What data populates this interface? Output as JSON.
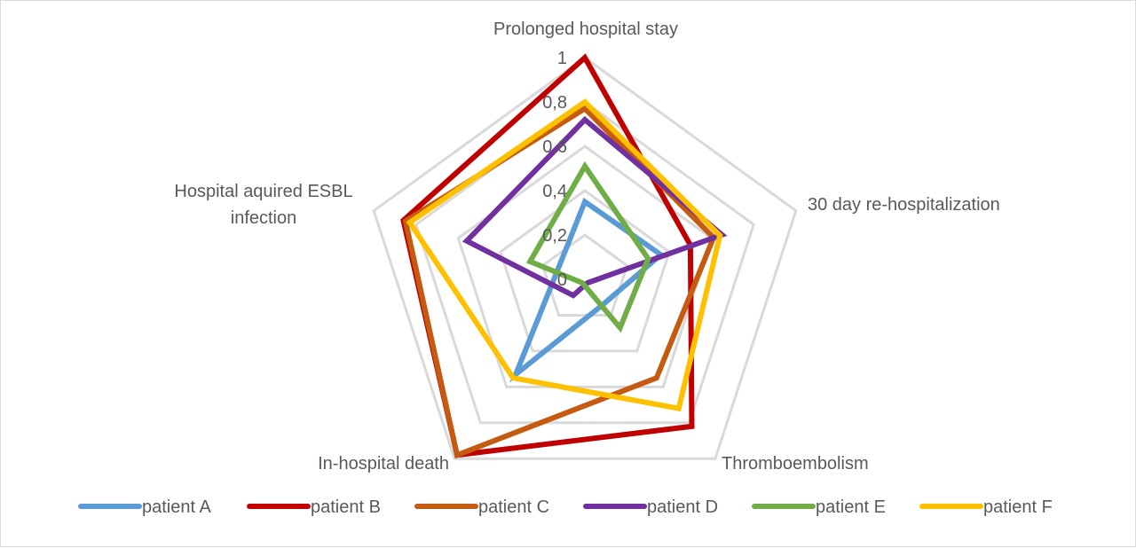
{
  "chart_data": {
    "type": "radar",
    "categories": [
      "Prolonged hospital stay",
      "30 day re-hospitalization",
      "Thromboembolism",
      "In-hospital death",
      "Hospital aquired ESBL infection"
    ],
    "category_label_lines": [
      [
        "Prolonged hospital stay"
      ],
      [
        "30 day re-hospitalization"
      ],
      [
        "Thromboembolism"
      ],
      [
        "In-hospital death"
      ],
      [
        "Hospital aquired ESBL",
        "infection"
      ]
    ],
    "ticks": [
      "0",
      "0,2",
      "0,4",
      "0,6",
      "0,8",
      "1"
    ],
    "tick_values": [
      0,
      0.2,
      0.4,
      0.6,
      0.8,
      1
    ],
    "rlim": [
      0,
      1
    ],
    "grid": true,
    "legend_position": "bottom",
    "series": [
      {
        "name": "patient A",
        "color": "#5b9bd5",
        "values": [
          0.35,
          0.36,
          0.14,
          0.53,
          0.13
        ]
      },
      {
        "name": "patient B",
        "color": "#c00000",
        "values": [
          1.0,
          0.5,
          0.82,
          0.98,
          0.86
        ]
      },
      {
        "name": "patient C",
        "color": "#c55a11",
        "values": [
          0.77,
          0.61,
          0.55,
          0.98,
          0.85
        ]
      },
      {
        "name": "patient D",
        "color": "#7030a0",
        "values": [
          0.72,
          0.65,
          0.02,
          0.09,
          0.56
        ]
      },
      {
        "name": "patient E",
        "color": "#70ad47",
        "values": [
          0.51,
          0.3,
          0.27,
          0.02,
          0.26
        ]
      },
      {
        "name": "patient F",
        "color": "#ffc000",
        "values": [
          0.8,
          0.64,
          0.72,
          0.55,
          0.83
        ]
      }
    ]
  }
}
